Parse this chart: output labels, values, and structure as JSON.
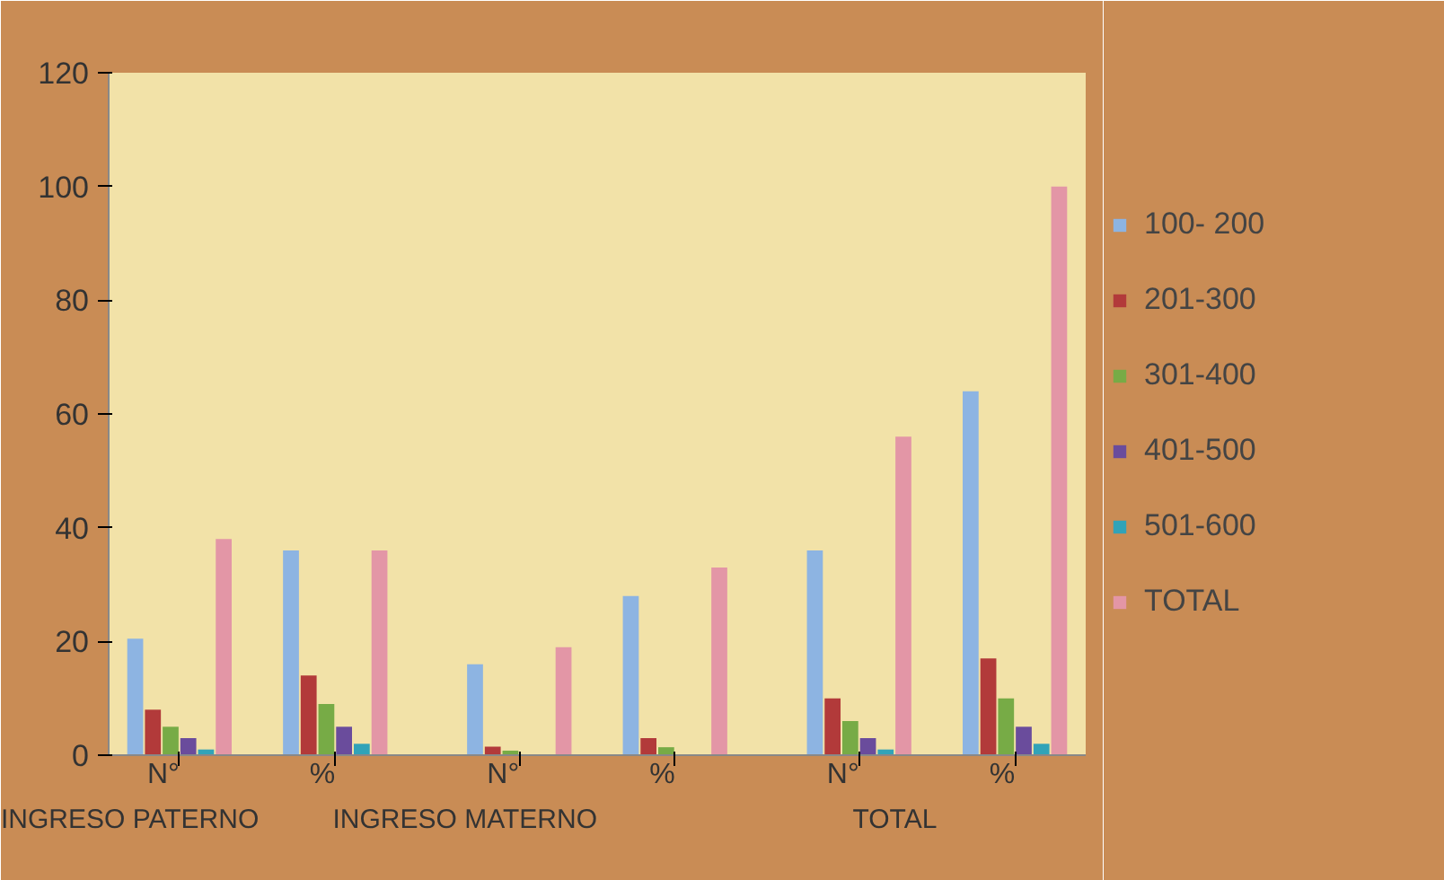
{
  "chart_data": {
    "type": "bar",
    "categories": [
      "N°",
      "%",
      "N°",
      "%",
      "N°",
      "%"
    ],
    "annotations": [
      "INGRESO PATERNO",
      "INGRESO MATERNO",
      "TOTAL"
    ],
    "series": [
      {
        "name": "100- 200",
        "color": "#8db4e2",
        "values": [
          20.5,
          36,
          16,
          28,
          36,
          64
        ]
      },
      {
        "name": "201-300",
        "color": "#b23a3a",
        "values": [
          8,
          14,
          1.5,
          3,
          10,
          17
        ]
      },
      {
        "name": "301-400",
        "color": "#77ab46",
        "values": [
          5,
          9,
          0.8,
          1.4,
          6,
          10
        ]
      },
      {
        "name": "401-500",
        "color": "#6a4c9c",
        "values": [
          3,
          5,
          0,
          0,
          3,
          5
        ]
      },
      {
        "name": "501-600",
        "color": "#31a3b8",
        "values": [
          1,
          2,
          0,
          0,
          1,
          2
        ]
      },
      {
        "name": "TOTAL",
        "color": "#e396a6",
        "values": [
          38,
          36,
          19,
          33,
          56,
          100
        ]
      }
    ],
    "ylim": [
      0,
      120
    ],
    "yticks": [
      0,
      20,
      40,
      60,
      80,
      100,
      120
    ],
    "grid": false,
    "legend": "right"
  }
}
